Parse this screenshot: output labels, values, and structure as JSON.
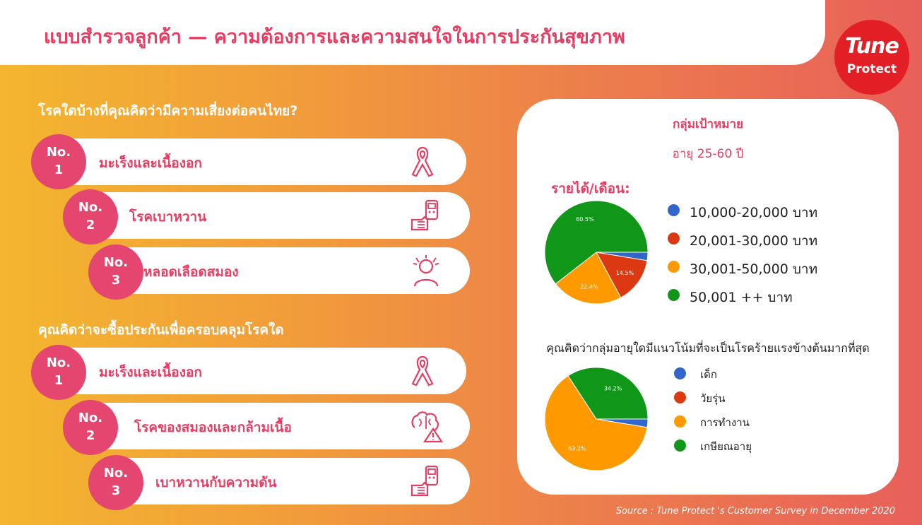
{
  "header": {
    "title": "แบบสำรวจลูกค้า — ความต้องการและความสนใจในการประกันสุขภาพ"
  },
  "logo": {
    "line1": "Tune",
    "line2": "Protect"
  },
  "section1": {
    "question": "โรคใดบ้างที่คุณคิดว่ามีความเสี่ยงต่อคนไทย?",
    "items": [
      {
        "badge_no": "No.",
        "badge_rank": "1",
        "label": "มะเร็งและเนื้องอก",
        "icon": "ribbon-icon"
      },
      {
        "badge_no": "No.",
        "badge_rank": "2",
        "label": "โรคเบาหวาน",
        "icon": "glucose-meter-icon"
      },
      {
        "badge_no": "No.",
        "badge_rank": "3",
        "label": "หลอดเลือดสมอง",
        "icon": "headache-person-icon"
      }
    ]
  },
  "section2": {
    "question": "คุณคิดว่าจะซื้อประกันเพื่อครอบคลุมโรคใด",
    "items": [
      {
        "badge_no": "No.",
        "badge_rank": "1",
        "label": "มะเร็งและเนื้องอก",
        "icon": "ribbon-icon"
      },
      {
        "badge_no": "No.",
        "badge_rank": "2",
        "label": "โรคของสมองและกล้ามเนื้อ",
        "icon": "brain-warning-icon"
      },
      {
        "badge_no": "No.",
        "badge_rank": "3",
        "label": "เบาหวานกับความดัน",
        "icon": "glucose-meter-icon"
      }
    ]
  },
  "panel": {
    "target_title": "กลุ่มเป้าหมาย",
    "target_age": "อายุ 25-60 ปี",
    "income_label": "รายได้/เดือน:",
    "age_question": "คุณคิดว่ากลุ่มอายุใดมีแนวโน้มที่จะเป็นโรคร้ายแรงข้างต้นมากที่สุด"
  },
  "colors": {
    "blue": "#3366cc",
    "red": "#dc3912",
    "orange": "#ff9900",
    "green": "#109618",
    "accent": "#e53e62",
    "badge": "#e4466f"
  },
  "chart_data": [
    {
      "type": "pie",
      "title": "รายได้/เดือน:",
      "categories": [
        "10,000-20,000 บาท",
        "20,001-30,000 บาท",
        "30,001-50,000 บาท",
        "50,001 ++ บาท"
      ],
      "values": [
        2.6,
        14.5,
        22.4,
        60.5
      ],
      "labels": [
        "",
        "14.5%",
        "22.4%",
        "60.5%"
      ],
      "colors": [
        "#3366cc",
        "#dc3912",
        "#ff9900",
        "#109618"
      ]
    },
    {
      "type": "pie",
      "title": "คุณคิดว่ากลุ่มอายุใดมีแนวโน้มที่จะเป็นโรคร้ายแรงข้างต้นมากที่สุด",
      "categories": [
        "เด็ก",
        "วัยรุ่น",
        "การทำงาน",
        "เกษียณอายุ"
      ],
      "values": [
        2.6,
        0,
        63.2,
        34.2
      ],
      "labels": [
        "",
        "",
        "63.2%",
        "34.2%"
      ],
      "colors": [
        "#3366cc",
        "#dc3912",
        "#ff9900",
        "#109618"
      ]
    }
  ],
  "source": "Source : Tune Protect 's Customer Survey in December 2020"
}
